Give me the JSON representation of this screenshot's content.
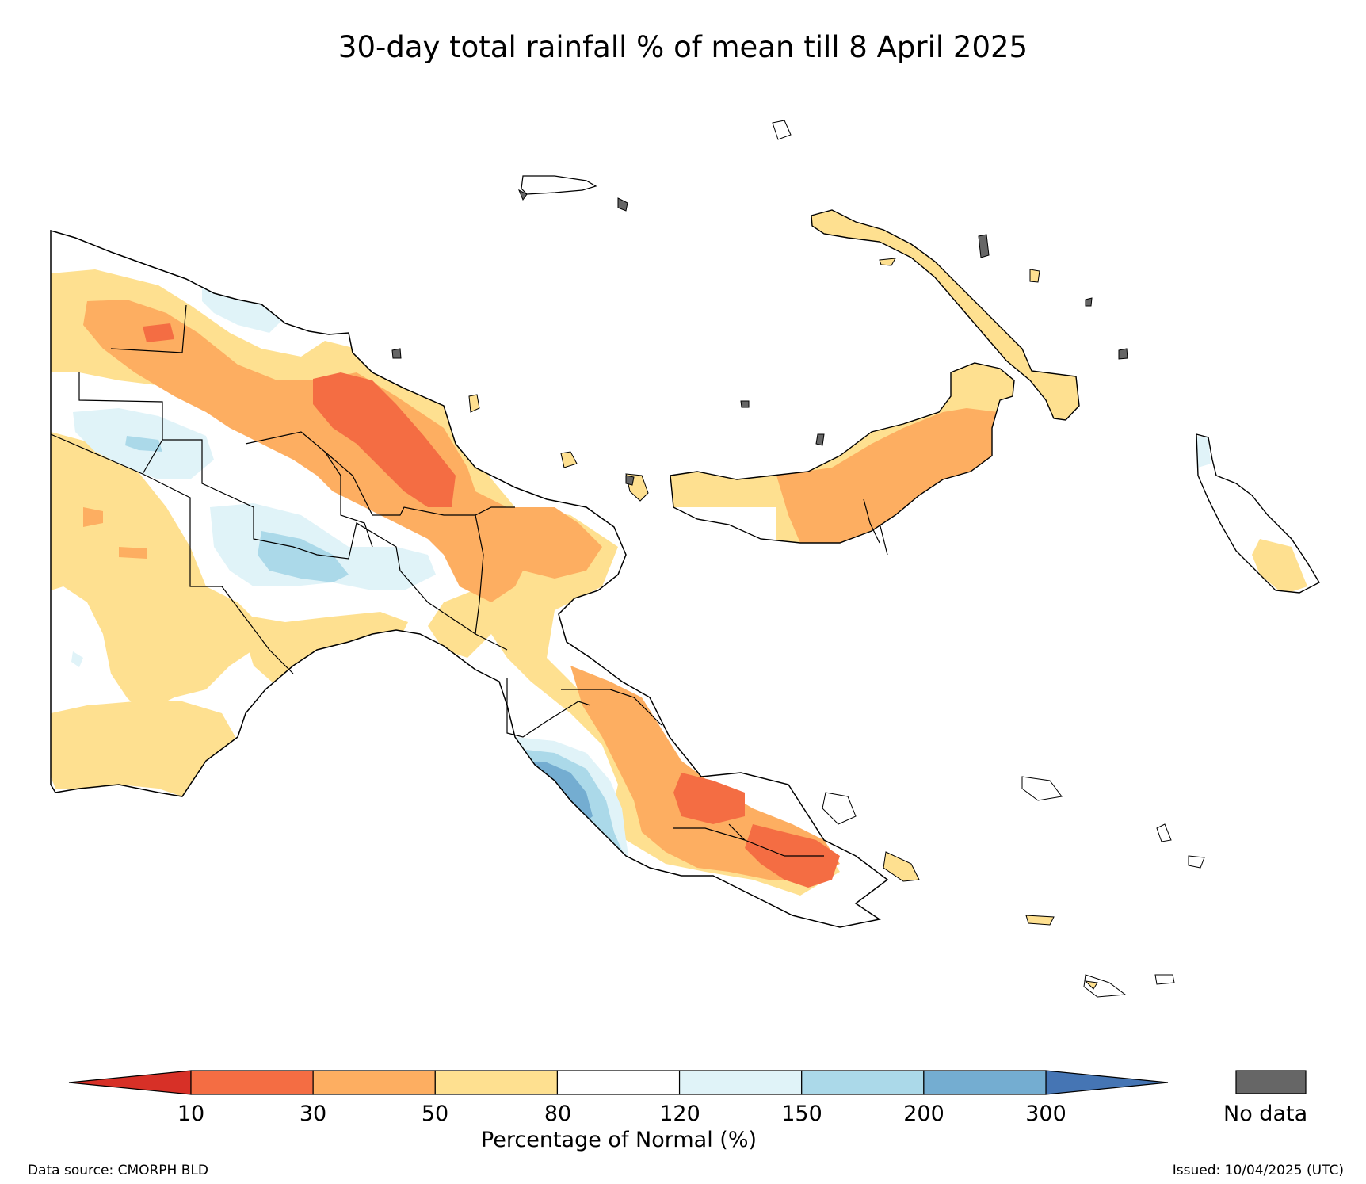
{
  "title": "30-day total rainfall % of mean till 8 April 2025",
  "legend": {
    "label": "Percentage of Normal (%)",
    "ticks": [
      "10",
      "30",
      "50",
      "80",
      "120",
      "150",
      "200",
      "300"
    ],
    "bins": [
      {
        "range": "<10",
        "color": "#d73027"
      },
      {
        "range": "10-30",
        "color": "#f46d43"
      },
      {
        "range": "30-50",
        "color": "#fdae61"
      },
      {
        "range": "50-80",
        "color": "#fee090"
      },
      {
        "range": "80-120",
        "color": "#ffffff"
      },
      {
        "range": "120-150",
        "color": "#e0f3f8"
      },
      {
        "range": "150-200",
        "color": "#abd9e9"
      },
      {
        "range": "200-300",
        "color": "#74add1"
      },
      {
        "range": ">300",
        "color": "#4575b4"
      }
    ],
    "nodata_label": "No data",
    "nodata_color": "#666666"
  },
  "footer": {
    "source": "Data source: CMORPH BLD",
    "issued": "Issued: 10/04/2025 (UTC)"
  }
}
